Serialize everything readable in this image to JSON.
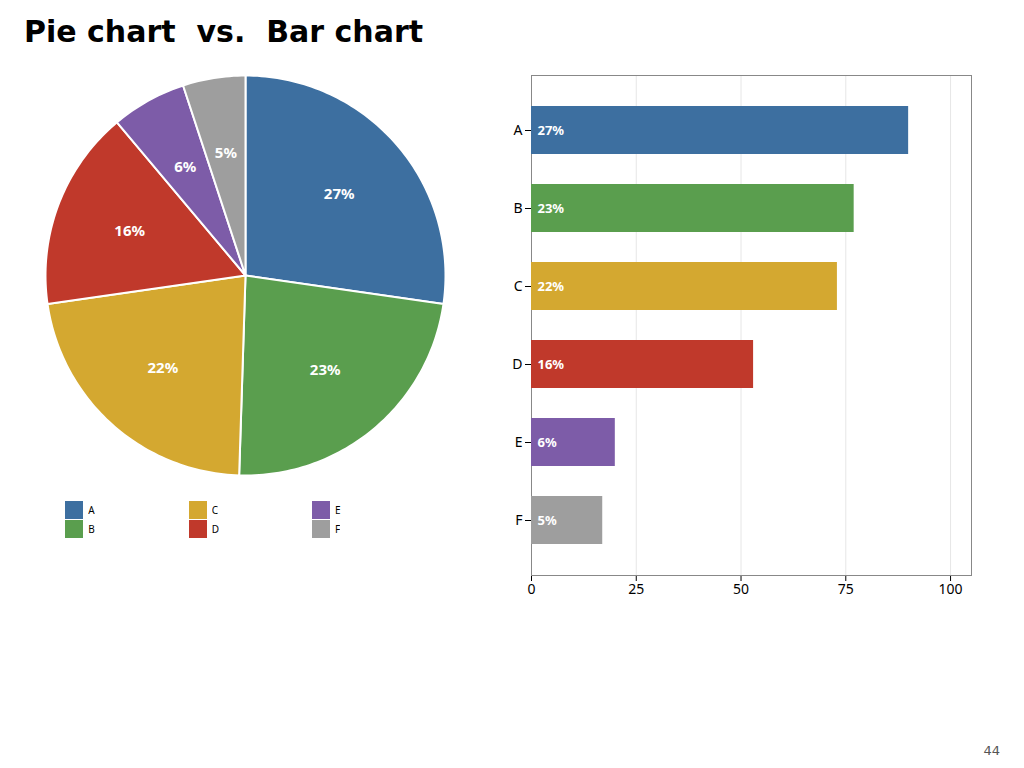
{
  "chart_data": [
    {
      "type": "pie",
      "title": "Pie chart  vs.  Bar chart",
      "categories": [
        "A",
        "B",
        "C",
        "D",
        "E",
        "F"
      ],
      "values": [
        27,
        23,
        22,
        16,
        6,
        5
      ],
      "value_labels": [
        "27%",
        "23%",
        "22%",
        "16%",
        "6%",
        "5%"
      ],
      "colors": [
        "#3d6fa0",
        "#5a9e4e",
        "#d4a830",
        "#c0392b",
        "#7d5ca8",
        "#9e9e9e"
      ],
      "data_labels": true,
      "legend": "bottom"
    },
    {
      "type": "bar",
      "orientation": "horizontal",
      "categories": [
        "A",
        "B",
        "C",
        "D",
        "E",
        "F"
      ],
      "values": [
        90,
        77,
        73,
        53,
        20,
        17
      ],
      "share_labels": [
        "27%",
        "23%",
        "22%",
        "16%",
        "6%",
        "5%"
      ],
      "colors": [
        "#3d6fa0",
        "#5a9e4e",
        "#d4a830",
        "#c0392b",
        "#7d5ca8",
        "#9e9e9e"
      ],
      "xlim": [
        0,
        105
      ],
      "xticks": [
        0,
        25,
        50,
        75,
        100
      ],
      "grid": true,
      "annotations": [
        "44"
      ]
    }
  ]
}
